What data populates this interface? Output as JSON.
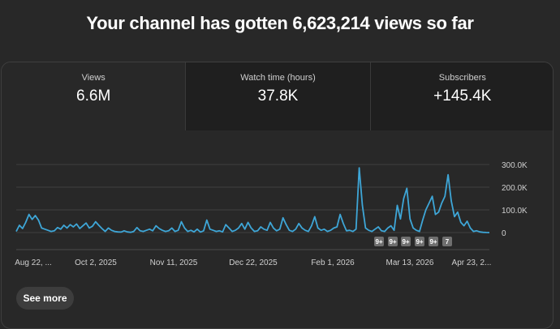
{
  "headline": "Your channel has gotten 6,623,214 views so far",
  "tabs": [
    {
      "label": "Views",
      "value": "6.6M"
    },
    {
      "label": "Watch time (hours)",
      "value": "37.8K"
    },
    {
      "label": "Subscribers",
      "value": "+145.4K"
    }
  ],
  "see_more_label": "See more",
  "colors": {
    "line": "#3ea6d7",
    "background": "#282828",
    "grid": "#3f3f3f",
    "marker": "#6f6f6f"
  },
  "chart_data": {
    "type": "line",
    "series": [
      {
        "values": [
          5000,
          32000,
          18000,
          45000,
          80000,
          58000,
          75000,
          55000,
          20000,
          15000,
          10000,
          5000,
          8000,
          22000,
          15000,
          32000,
          20000,
          35000,
          25000,
          38000,
          18000,
          30000,
          42000,
          20000,
          28000,
          48000,
          32000,
          18000,
          5000,
          20000,
          10000,
          5000,
          3000,
          2000,
          8000,
          3000,
          1000,
          5000,
          22000,
          8000,
          5000,
          10000,
          15000,
          8000,
          30000,
          18000,
          10000,
          5000,
          8000,
          20000,
          5000,
          10000,
          48000,
          20000,
          5000,
          10000,
          3000,
          15000,
          2000,
          8000,
          55000,
          15000,
          10000,
          5000,
          8000,
          3000,
          35000,
          20000,
          5000,
          10000,
          20000,
          40000,
          15000,
          45000,
          20000,
          5000,
          8000,
          25000,
          15000,
          10000,
          45000,
          20000,
          8000,
          15000,
          65000,
          35000,
          10000,
          5000,
          15000,
          40000,
          20000,
          10000,
          5000,
          30000,
          70000,
          20000,
          10000,
          15000,
          5000,
          10000,
          20000,
          25000,
          80000,
          40000,
          8000,
          10000,
          5000,
          15000,
          285000,
          120000,
          20000,
          10000,
          5000,
          15000,
          25000,
          8000,
          5000,
          20000,
          30000,
          10000,
          120000,
          60000,
          150000,
          195000,
          60000,
          20000,
          10000,
          5000,
          55000,
          100000,
          130000,
          160000,
          80000,
          90000,
          130000,
          160000,
          255000,
          140000,
          70000,
          90000,
          45000,
          30000,
          50000,
          20000,
          5000,
          8000,
          3000,
          1000,
          500,
          0
        ]
      }
    ],
    "x_tick_labels": [
      "Aug 22, ...",
      "Oct 2, 2025",
      "Nov 11, 2025",
      "Dec 22, 2025",
      "Feb 1, 2026",
      "Mar 13, 2026",
      "Apr 23, 2..."
    ],
    "y_tick_labels": [
      "300.0K",
      "200.0K",
      "100.0K",
      "0"
    ],
    "ylim": [
      0,
      300000
    ],
    "grid": true,
    "markers": [
      "9+",
      "9+",
      "9+",
      "9+",
      "9+",
      "7"
    ]
  }
}
